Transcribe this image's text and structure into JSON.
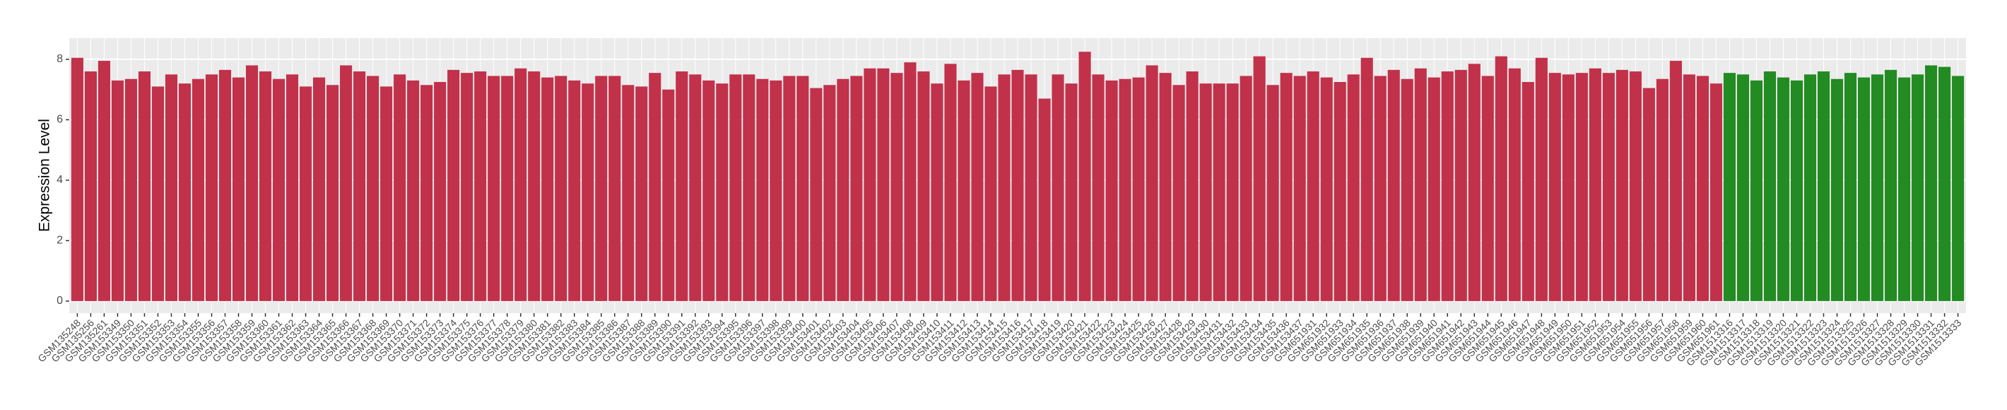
{
  "chart_data": {
    "type": "bar",
    "y_label": "Expression Level",
    "categories": [
      "GSM135248",
      "GSM135256",
      "GSM135261",
      "GSM153349",
      "GSM153350",
      "GSM153351",
      "GSM153352",
      "GSM153353",
      "GSM153354",
      "GSM153355",
      "GSM153356",
      "GSM153357",
      "GSM153358",
      "GSM153359",
      "GSM153360",
      "GSM153361",
      "GSM153362",
      "GSM153363",
      "GSM153364",
      "GSM153365",
      "GSM153366",
      "GSM153367",
      "GSM153368",
      "GSM153369",
      "GSM153370",
      "GSM153371",
      "GSM153372",
      "GSM153373",
      "GSM153374",
      "GSM153375",
      "GSM153376",
      "GSM153377",
      "GSM153378",
      "GSM153379",
      "GSM153380",
      "GSM153381",
      "GSM153382",
      "GSM153383",
      "GSM153384",
      "GSM153385",
      "GSM153386",
      "GSM153387",
      "GSM153388",
      "GSM153389",
      "GSM153390",
      "GSM153391",
      "GSM153392",
      "GSM153393",
      "GSM153394",
      "GSM153395",
      "GSM153396",
      "GSM153397",
      "GSM153398",
      "GSM153399",
      "GSM153400",
      "GSM153401",
      "GSM153402",
      "GSM153403",
      "GSM153404",
      "GSM153405",
      "GSM153406",
      "GSM153407",
      "GSM153408",
      "GSM153409",
      "GSM153410",
      "GSM153411",
      "GSM153412",
      "GSM153413",
      "GSM153414",
      "GSM153415",
      "GSM153416",
      "GSM153417",
      "GSM153418",
      "GSM153419",
      "GSM153420",
      "GSM153421",
      "GSM153422",
      "GSM153423",
      "GSM153424",
      "GSM153425",
      "GSM153426",
      "GSM153427",
      "GSM153428",
      "GSM153429",
      "GSM153430",
      "GSM153431",
      "GSM153432",
      "GSM153433",
      "GSM153434",
      "GSM153435",
      "GSM153436",
      "GSM153437",
      "GSM651931",
      "GSM651932",
      "GSM651933",
      "GSM651934",
      "GSM651935",
      "GSM651936",
      "GSM651937",
      "GSM651938",
      "GSM651939",
      "GSM651940",
      "GSM651941",
      "GSM651942",
      "GSM651943",
      "GSM651944",
      "GSM651945",
      "GSM651946",
      "GSM651947",
      "GSM651948",
      "GSM651949",
      "GSM651950",
      "GSM651951",
      "GSM651952",
      "GSM651953",
      "GSM651954",
      "GSM651955",
      "GSM651956",
      "GSM651957",
      "GSM651958",
      "GSM651959",
      "GSM651960",
      "GSM651961",
      "GSM1513316",
      "GSM1513317",
      "GSM1513318",
      "GSM1513319",
      "GSM1513320",
      "GSM1513321",
      "GSM1513322",
      "GSM1513323",
      "GSM1513324",
      "GSM1513325",
      "GSM1513326",
      "GSM1513327",
      "GSM1513328",
      "GSM1513329",
      "GSM1513330",
      "GSM1513331",
      "GSM1513332",
      "GSM1513333"
    ],
    "values": [
      8.05,
      7.6,
      7.95,
      7.3,
      7.35,
      7.6,
      7.1,
      7.5,
      7.2,
      7.35,
      7.5,
      7.65,
      7.4,
      7.8,
      7.6,
      7.35,
      7.5,
      7.1,
      7.4,
      7.15,
      7.8,
      7.6,
      7.45,
      7.1,
      7.5,
      7.3,
      7.15,
      7.25,
      7.65,
      7.55,
      7.6,
      7.45,
      7.45,
      7.7,
      7.6,
      7.4,
      7.45,
      7.3,
      7.2,
      7.45,
      7.45,
      7.15,
      7.1,
      7.55,
      7.0,
      7.6,
      7.5,
      7.3,
      7.2,
      7.5,
      7.5,
      7.35,
      7.3,
      7.45,
      7.45,
      7.05,
      7.15,
      7.35,
      7.45,
      7.7,
      7.7,
      7.55,
      7.9,
      7.6,
      7.2,
      7.85,
      7.3,
      7.55,
      7.1,
      7.5,
      7.65,
      7.5,
      6.7,
      7.5,
      7.2,
      8.25,
      7.5,
      7.3,
      7.35,
      7.4,
      7.8,
      7.55,
      7.15,
      7.6,
      7.2,
      7.2,
      7.2,
      7.45,
      8.1,
      7.15,
      7.55,
      7.45,
      7.6,
      7.4,
      7.25,
      7.5,
      8.05,
      7.45,
      7.65,
      7.35,
      7.7,
      7.4,
      7.6,
      7.65,
      7.85,
      7.45,
      8.1,
      7.7,
      7.25,
      8.05,
      7.55,
      7.5,
      7.55,
      7.7,
      7.55,
      7.65,
      7.6,
      7.05,
      7.35,
      7.95,
      7.5,
      7.45,
      7.2,
      7.55,
      7.5,
      7.3,
      7.6,
      7.4,
      7.3,
      7.5,
      7.6,
      7.35,
      7.55,
      7.4,
      7.5,
      7.65,
      7.4,
      7.5,
      7.8,
      7.75,
      7.45
    ],
    "colors": [
      "#c1314a",
      "#c1314a",
      "#c1314a",
      "#c1314a",
      "#c1314a",
      "#c1314a",
      "#c1314a",
      "#c1314a",
      "#c1314a",
      "#c1314a",
      "#c1314a",
      "#c1314a",
      "#c1314a",
      "#c1314a",
      "#c1314a",
      "#c1314a",
      "#c1314a",
      "#c1314a",
      "#c1314a",
      "#c1314a",
      "#c1314a",
      "#c1314a",
      "#c1314a",
      "#c1314a",
      "#c1314a",
      "#c1314a",
      "#c1314a",
      "#c1314a",
      "#c1314a",
      "#c1314a",
      "#c1314a",
      "#c1314a",
      "#c1314a",
      "#c1314a",
      "#c1314a",
      "#c1314a",
      "#c1314a",
      "#c1314a",
      "#c1314a",
      "#c1314a",
      "#c1314a",
      "#c1314a",
      "#c1314a",
      "#c1314a",
      "#c1314a",
      "#c1314a",
      "#c1314a",
      "#c1314a",
      "#c1314a",
      "#c1314a",
      "#c1314a",
      "#c1314a",
      "#c1314a",
      "#c1314a",
      "#c1314a",
      "#c1314a",
      "#c1314a",
      "#c1314a",
      "#c1314a",
      "#c1314a",
      "#c1314a",
      "#c1314a",
      "#c1314a",
      "#c1314a",
      "#c1314a",
      "#c1314a",
      "#c1314a",
      "#c1314a",
      "#c1314a",
      "#c1314a",
      "#c1314a",
      "#c1314a",
      "#c1314a",
      "#c1314a",
      "#c1314a",
      "#c1314a",
      "#c1314a",
      "#c1314a",
      "#c1314a",
      "#c1314a",
      "#c1314a",
      "#c1314a",
      "#c1314a",
      "#c1314a",
      "#c1314a",
      "#c1314a",
      "#c1314a",
      "#c1314a",
      "#c1314a",
      "#c1314a",
      "#c1314a",
      "#c1314a",
      "#c1314a",
      "#c1314a",
      "#c1314a",
      "#c1314a",
      "#c1314a",
      "#c1314a",
      "#c1314a",
      "#c1314a",
      "#c1314a",
      "#c1314a",
      "#c1314a",
      "#c1314a",
      "#c1314a",
      "#c1314a",
      "#c1314a",
      "#c1314a",
      "#c1314a",
      "#c1314a",
      "#c1314a",
      "#c1314a",
      "#c1314a",
      "#c1314a",
      "#c1314a",
      "#c1314a",
      "#c1314a",
      "#c1314a",
      "#c1314a",
      "#c1314a",
      "#c1314a",
      "#c1314a",
      "#c1314a",
      "#228b22",
      "#228b22",
      "#228b22",
      "#228b22",
      "#228b22",
      "#228b22",
      "#228b22",
      "#228b22",
      "#228b22",
      "#228b22",
      "#228b22",
      "#228b22",
      "#228b22",
      "#228b22",
      "#228b22",
      "#228b22",
      "#228b22",
      "#228b22"
    ],
    "ylim": [
      -0.4,
      8.7
    ],
    "yticks": [
      0,
      2,
      4,
      6,
      8
    ],
    "grid": true
  }
}
